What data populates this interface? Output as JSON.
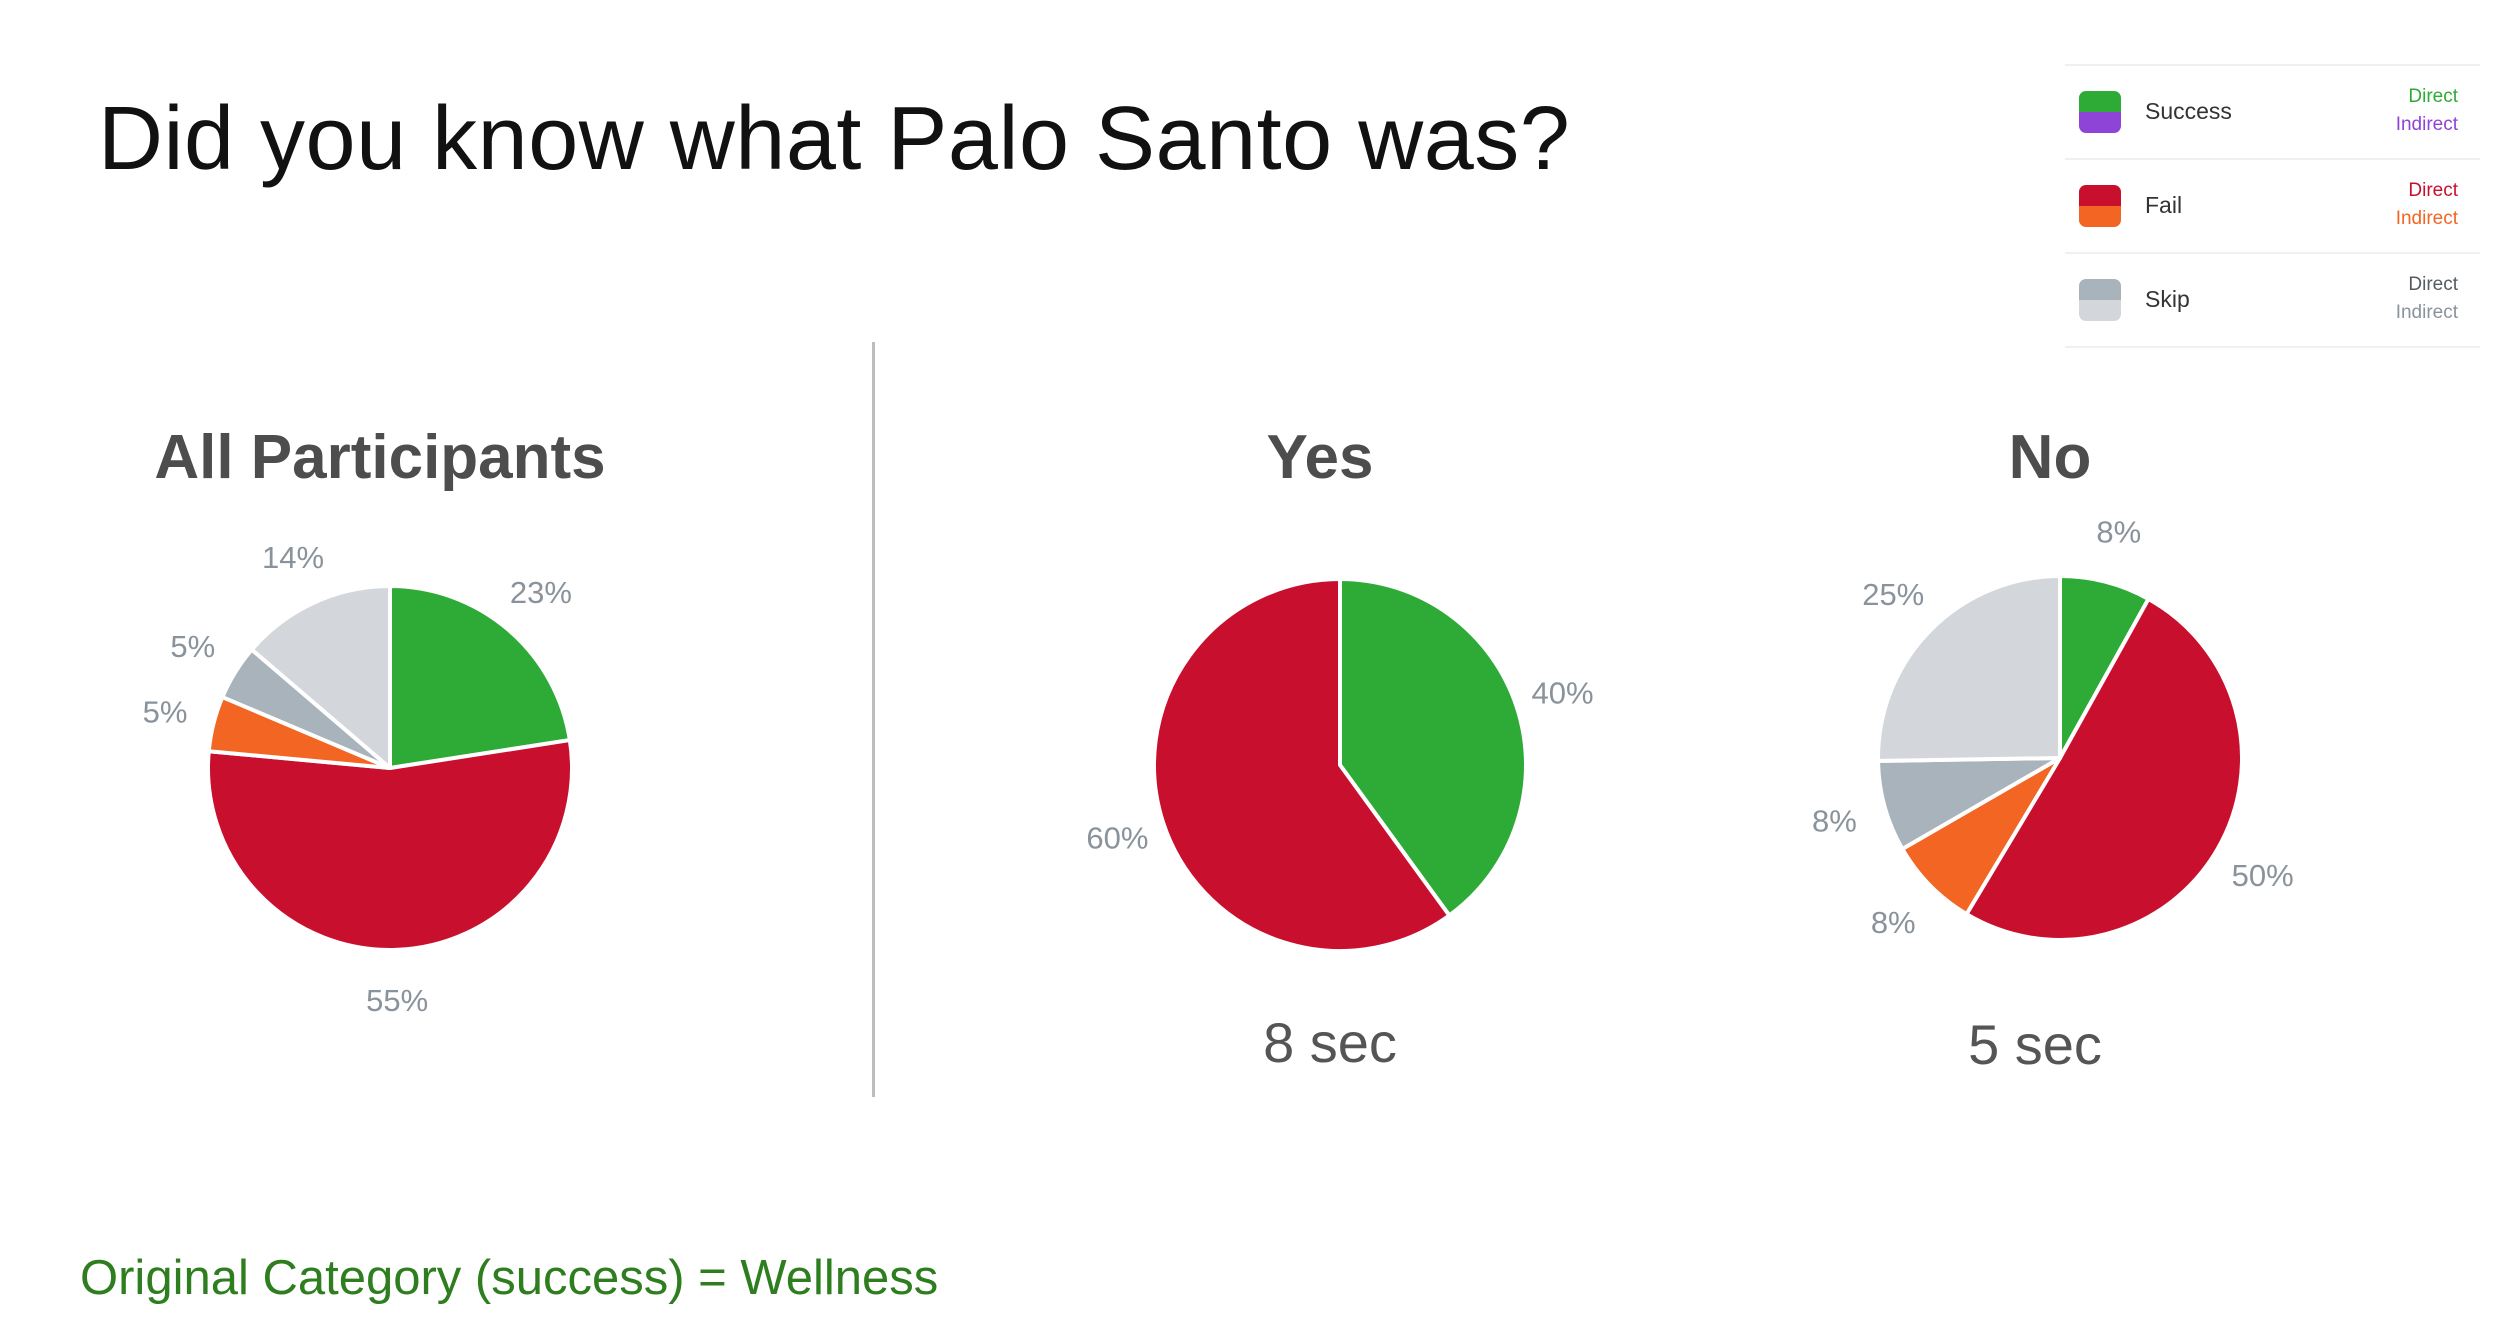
{
  "title": "Did you know what Palo Santo was?",
  "legend": [
    {
      "label": "Success",
      "top": "Direct",
      "bottom": "Indirect",
      "colors": [
        "#2eaa36",
        "#8e44d6"
      ],
      "text_colors": [
        "#2eaa36",
        "#8e44d6"
      ]
    },
    {
      "label": "Fail",
      "top": "Direct",
      "bottom": "Indirect",
      "colors": [
        "#c8102e",
        "#f26522"
      ],
      "text_colors": [
        "#c8102e",
        "#f26522"
      ]
    },
    {
      "label": "Skip",
      "top": "Direct",
      "bottom": "Indirect",
      "colors": [
        "#a9b3bb",
        "#d3d7dc"
      ],
      "text_colors": [
        "#555c63",
        "#8a939b"
      ]
    }
  ],
  "chart_data": [
    {
      "type": "pie",
      "title": "All Participants",
      "slices": [
        {
          "name": "Success Direct",
          "value": 23,
          "label": "23%",
          "color": "#2eaa36"
        },
        {
          "name": "Fail Direct",
          "value": 55,
          "label": "55%",
          "color": "#c8102e"
        },
        {
          "name": "Fail Indirect",
          "value": 5,
          "label": "5%",
          "color": "#f26522"
        },
        {
          "name": "Skip Direct",
          "value": 5,
          "label": "5%",
          "color": "#a9b3bb"
        },
        {
          "name": "Skip Indirect",
          "value": 14,
          "label": "14%",
          "color": "#d3d7dc"
        }
      ]
    },
    {
      "type": "pie",
      "title": "Yes",
      "time": "8 sec",
      "slices": [
        {
          "name": "Success Direct",
          "value": 40,
          "label": "40%",
          "color": "#2eaa36"
        },
        {
          "name": "Fail Direct",
          "value": 60,
          "label": "60%",
          "color": "#c8102e"
        }
      ]
    },
    {
      "type": "pie",
      "title": "No",
      "time": "5 sec",
      "slices": [
        {
          "name": "Success Direct",
          "value": 8,
          "label": "8%",
          "color": "#2eaa36"
        },
        {
          "name": "Fail Direct",
          "value": 50,
          "label": "50%",
          "color": "#c8102e"
        },
        {
          "name": "Fail Indirect",
          "value": 8,
          "label": "8%",
          "color": "#f26522"
        },
        {
          "name": "Skip Direct",
          "value": 8,
          "label": "8%",
          "color": "#a9b3bb"
        },
        {
          "name": "Skip Indirect",
          "value": 25,
          "label": "25%",
          "color": "#d3d7dc"
        }
      ]
    }
  ],
  "footer": "Original Category (success) = Wellness"
}
